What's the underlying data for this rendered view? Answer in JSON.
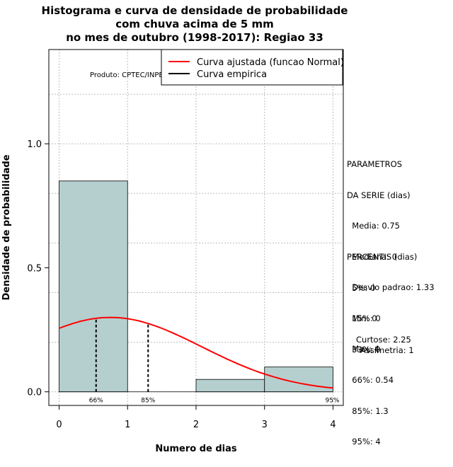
{
  "chart_data": {
    "type": "bar",
    "title_lines": [
      "Histograma e curva de densidade de probabilidade",
      "com chuva acima de 5 mm",
      "no mes de outubro (1998-2017): Regiao 33"
    ],
    "xlabel": "Numero de dias",
    "ylabel": "Densidade de probabilidade",
    "xlim": [
      -0.15,
      4.15
    ],
    "ylim": [
      -0.055,
      1.38
    ],
    "xticks": [
      "0",
      "1",
      "2",
      "3",
      "4"
    ],
    "yticks": [
      "0.0",
      "0.5",
      "1.0"
    ],
    "bins": [
      {
        "from": 0,
        "to": 1,
        "density": 0.85
      },
      {
        "from": 1,
        "to": 2,
        "density": 0.0
      },
      {
        "from": 2,
        "to": 3,
        "density": 0.05
      },
      {
        "from": 3,
        "to": 4,
        "density": 0.1
      }
    ],
    "normal_fit": {
      "mean": 0.75,
      "sd": 1.33,
      "color": "#ff0000"
    },
    "percentile_markers": [
      {
        "x": 0.54,
        "label": "66%"
      },
      {
        "x": 1.3,
        "label": "85%"
      },
      {
        "x": 4,
        "label": "95%"
      }
    ],
    "legend": [
      "Curva ajustada (funcao Normal)",
      "Curva empirica"
    ],
    "product_label": "Produto: CPTEC/INPE",
    "bar_color": "#b5cfcf"
  },
  "side_panel": {
    "parametros": [
      "PARAMETROS",
      "DA SERIE (dias)",
      "  Media: 0.75",
      "  Mediana: 0",
      "  Desvio padrao: 1.33",
      "  Min: 0",
      "  Max: 4"
    ],
    "percentis": [
      "PERCENTIS (dias)",
      "  5%: 0",
      "  15%: 0",
      "  33%: 0",
      "  66%: 0.54",
      "  85%: 1.3",
      "  95%: 4"
    ],
    "curtose": "Curtose: 2.25",
    "assimetria": "Assimetria: 1"
  }
}
